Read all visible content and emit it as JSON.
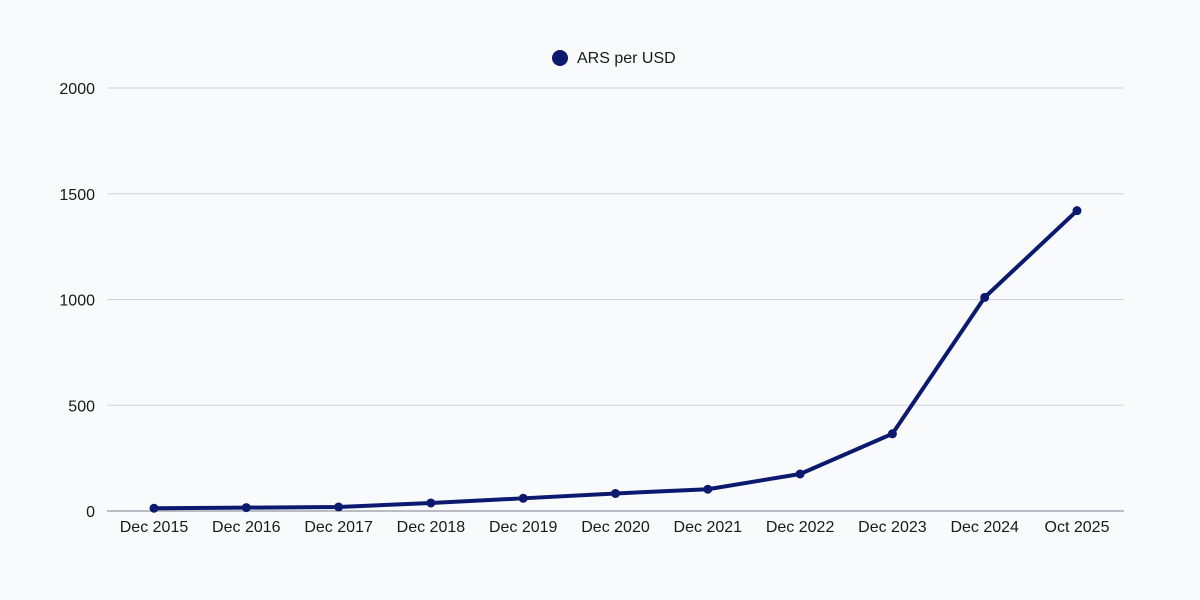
{
  "chart_data": {
    "type": "line",
    "title": "",
    "xlabel": "",
    "ylabel": "",
    "categories": [
      "Dec 2015",
      "Dec 2016",
      "Dec 2017",
      "Dec 2018",
      "Dec 2019",
      "Dec 2020",
      "Dec 2021",
      "Dec 2022",
      "Dec 2023",
      "Dec 2024",
      "Oct 2025"
    ],
    "series": [
      {
        "name": "ARS per USD",
        "color": "#0b1a6e",
        "values": [
          13,
          16,
          19,
          38,
          60,
          83,
          103,
          175,
          365,
          1010,
          1420
        ]
      }
    ],
    "ylim": [
      0,
      2000
    ],
    "yticks": [
      0,
      500,
      1000,
      1500,
      2000
    ],
    "grid": true,
    "legend_position": "top-center"
  }
}
